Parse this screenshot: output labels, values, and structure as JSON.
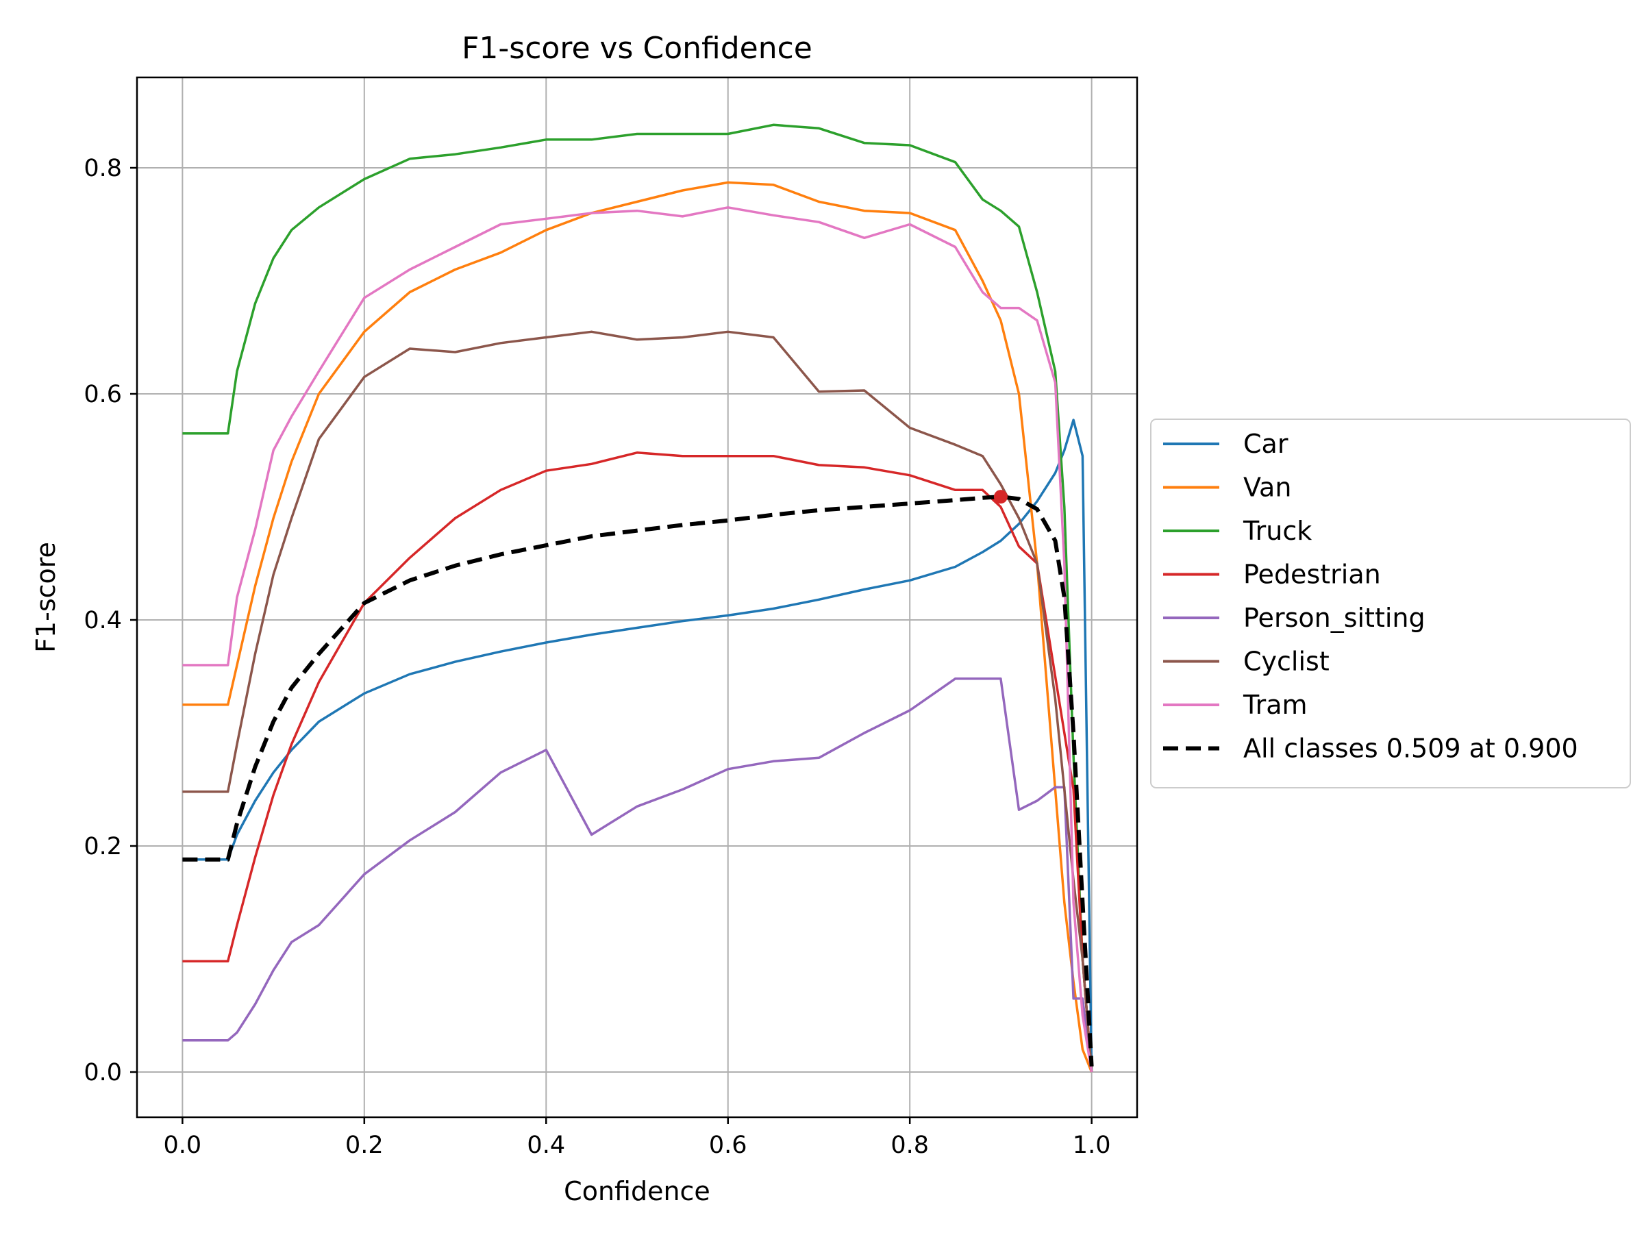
{
  "chart_data": {
    "type": "line",
    "title": "F1-score vs Confidence",
    "xlabel": "Confidence",
    "ylabel": "F1-score",
    "xlim": [
      -0.05,
      1.05
    ],
    "ylim": [
      -0.04,
      0.88
    ],
    "xticks": [
      0.0,
      0.2,
      0.4,
      0.6,
      0.8,
      1.0
    ],
    "xtick_labels": [
      "0.0",
      "0.2",
      "0.4",
      "0.6",
      "0.8",
      "1.0"
    ],
    "yticks": [
      0.0,
      0.2,
      0.4,
      0.6,
      0.8
    ],
    "ytick_labels": [
      "0.0",
      "0.2",
      "0.4",
      "0.6",
      "0.8"
    ],
    "grid": true,
    "legend_position": "outside-right",
    "x": [
      0.0,
      0.05,
      0.06,
      0.08,
      0.1,
      0.12,
      0.15,
      0.2,
      0.25,
      0.3,
      0.35,
      0.4,
      0.45,
      0.5,
      0.55,
      0.6,
      0.65,
      0.7,
      0.75,
      0.8,
      0.85,
      0.88,
      0.9,
      0.92,
      0.94,
      0.96,
      0.97,
      0.98,
      0.99,
      1.0
    ],
    "series": [
      {
        "name": "Car",
        "color": "#1f77b4",
        "dash": false,
        "values": [
          0.188,
          0.188,
          0.21,
          0.24,
          0.265,
          0.285,
          0.31,
          0.335,
          0.352,
          0.363,
          0.372,
          0.38,
          0.387,
          0.393,
          0.399,
          0.404,
          0.41,
          0.418,
          0.427,
          0.435,
          0.447,
          0.46,
          0.47,
          0.485,
          0.505,
          0.53,
          0.55,
          0.577,
          0.545,
          0.0
        ]
      },
      {
        "name": "Van",
        "color": "#ff7f0e",
        "dash": false,
        "values": [
          0.325,
          0.325,
          0.36,
          0.43,
          0.49,
          0.54,
          0.6,
          0.655,
          0.69,
          0.71,
          0.725,
          0.745,
          0.76,
          0.77,
          0.78,
          0.787,
          0.785,
          0.77,
          0.762,
          0.76,
          0.745,
          0.7,
          0.665,
          0.6,
          0.45,
          0.25,
          0.15,
          0.08,
          0.02,
          0.0
        ]
      },
      {
        "name": "Truck",
        "color": "#2ca02c",
        "dash": false,
        "values": [
          0.565,
          0.565,
          0.62,
          0.68,
          0.72,
          0.745,
          0.765,
          0.79,
          0.808,
          0.812,
          0.818,
          0.825,
          0.825,
          0.83,
          0.83,
          0.83,
          0.838,
          0.835,
          0.822,
          0.82,
          0.805,
          0.772,
          0.762,
          0.748,
          0.69,
          0.62,
          0.5,
          0.28,
          0.1,
          0.0
        ]
      },
      {
        "name": "Pedestrian",
        "color": "#d62728",
        "dash": false,
        "values": [
          0.098,
          0.098,
          0.13,
          0.19,
          0.245,
          0.29,
          0.345,
          0.415,
          0.455,
          0.49,
          0.515,
          0.532,
          0.538,
          0.548,
          0.545,
          0.545,
          0.545,
          0.537,
          0.535,
          0.528,
          0.515,
          0.515,
          0.5,
          0.465,
          0.45,
          0.35,
          0.3,
          0.25,
          0.1,
          0.0
        ]
      },
      {
        "name": "Person_sitting",
        "color": "#9467bd",
        "dash": false,
        "values": [
          0.028,
          0.028,
          0.035,
          0.06,
          0.09,
          0.115,
          0.13,
          0.175,
          0.205,
          0.23,
          0.265,
          0.285,
          0.21,
          0.235,
          0.25,
          0.268,
          0.275,
          0.278,
          0.3,
          0.32,
          0.348,
          0.348,
          0.348,
          0.232,
          0.24,
          0.252,
          0.252,
          0.065,
          0.065,
          0.0
        ]
      },
      {
        "name": "Cyclist",
        "color": "#8c564b",
        "dash": false,
        "values": [
          0.248,
          0.248,
          0.29,
          0.37,
          0.44,
          0.49,
          0.56,
          0.615,
          0.64,
          0.637,
          0.645,
          0.65,
          0.655,
          0.648,
          0.65,
          0.655,
          0.65,
          0.602,
          0.603,
          0.57,
          0.555,
          0.545,
          0.52,
          0.49,
          0.45,
          0.33,
          0.25,
          0.17,
          0.1,
          0.0
        ]
      },
      {
        "name": "Tram",
        "color": "#e377c2",
        "dash": false,
        "values": [
          0.36,
          0.36,
          0.42,
          0.48,
          0.55,
          0.58,
          0.62,
          0.685,
          0.71,
          0.73,
          0.75,
          0.755,
          0.76,
          0.762,
          0.757,
          0.765,
          0.758,
          0.752,
          0.738,
          0.75,
          0.73,
          0.69,
          0.676,
          0.676,
          0.665,
          0.61,
          0.45,
          0.15,
          0.05,
          0.0
        ]
      },
      {
        "name": "All classes 0.509 at 0.900",
        "color": "#000000",
        "dash": true,
        "values": [
          0.188,
          0.188,
          0.22,
          0.27,
          0.31,
          0.34,
          0.37,
          0.415,
          0.435,
          0.448,
          0.458,
          0.466,
          0.474,
          0.479,
          0.484,
          0.488,
          0.493,
          0.497,
          0.5,
          0.503,
          0.506,
          0.508,
          0.509,
          0.507,
          0.498,
          0.47,
          0.42,
          0.3,
          0.15,
          0.005
        ]
      }
    ],
    "highlight_point": {
      "x": 0.9,
      "y": 0.509,
      "color": "#d62728"
    }
  }
}
